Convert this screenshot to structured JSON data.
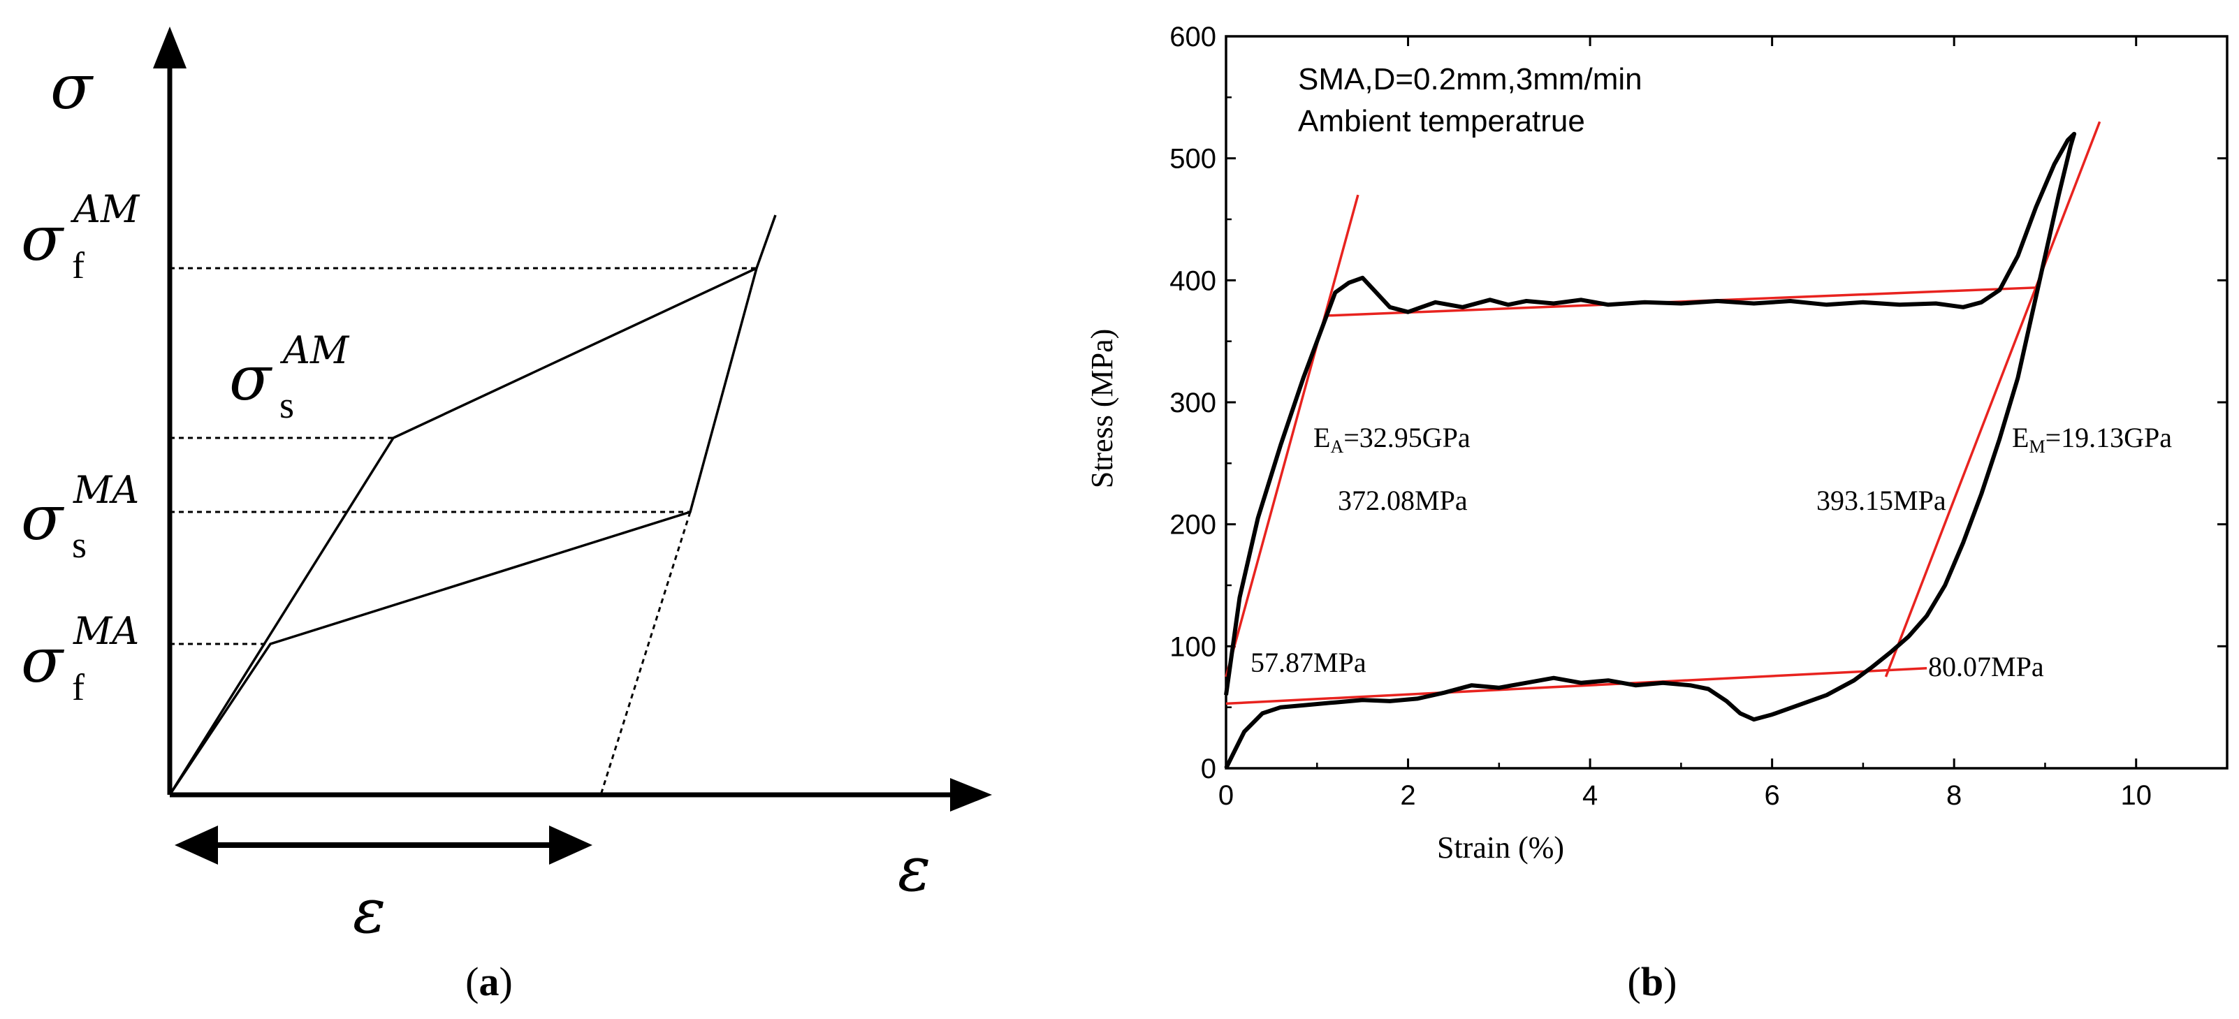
{
  "panel_a": {
    "caption_open": "(",
    "caption_letter": "a",
    "caption_close": ")",
    "y_axis_symbol": "σ",
    "x_axis_symbol": "ε",
    "strain_arrow_symbol": "ε",
    "levels": {
      "sigma_f_AM": {
        "symbol": "σ",
        "sub": "f",
        "sup": "AM"
      },
      "sigma_s_AM": {
        "symbol": "σ",
        "sub": "s",
        "sup": "AM"
      },
      "sigma_s_MA": {
        "symbol": "σ",
        "sub": "s",
        "sup": "MA"
      },
      "sigma_f_MA": {
        "symbol": "σ",
        "sub": "f",
        "sup": "MA"
      }
    }
  },
  "panel_b": {
    "caption_open": "(",
    "caption_letter": "b",
    "caption_close": ")"
  },
  "chart_data": [
    {
      "type": "line",
      "panel": "a",
      "schematic": true,
      "xlabel": "ε",
      "ylabel": "σ",
      "series": [
        {
          "style": "solid",
          "x": [
            0,
            0.14,
            0.5,
            0.46,
            0.07,
            0
          ],
          "y": [
            0,
            0.58,
            0.82,
            0.47,
            0.25,
            0
          ]
        },
        {
          "style": "dashed",
          "x": [
            0.46,
            0.38
          ],
          "y": [
            0.47,
            0
          ]
        }
      ],
      "marked_levels": [
        0.82,
        0.58,
        0.47,
        0.25
      ],
      "strain_arrow_x": [
        0,
        0.38
      ]
    },
    {
      "type": "line",
      "panel": "b",
      "annotations_top": [
        "SMA,D=0.2mm,3mm/min",
        "Ambient temperatrue"
      ],
      "xlabel": "Strain (%)",
      "ylabel": "Stress (MPa)",
      "xlim": [
        0,
        11
      ],
      "ylim": [
        0,
        600
      ],
      "xticks": [
        0,
        2,
        4,
        6,
        8,
        10
      ],
      "yticks": [
        0,
        100,
        200,
        300,
        400,
        500,
        600
      ],
      "x_tick_labels": [
        "0",
        "2",
        "4",
        "6",
        "8",
        "10"
      ],
      "y_tick_labels": [
        "0",
        "100",
        "200",
        "300",
        "400",
        "500",
        "600"
      ],
      "series": [
        {
          "color": "#000000",
          "x": [
            0,
            0.15,
            0.35,
            0.6,
            0.85,
            1.05,
            1.2,
            1.35,
            1.5,
            1.65,
            1.8,
            2.0,
            2.3,
            2.6,
            2.9,
            3.1,
            3.3,
            3.6,
            3.9,
            4.2,
            4.6,
            5.0,
            5.4,
            5.8,
            6.2,
            6.6,
            7.0,
            7.4,
            7.8,
            8.1,
            8.3,
            8.5,
            8.7,
            8.9,
            9.1,
            9.25,
            9.32,
            9.28,
            9.15,
            9.0,
            8.85,
            8.7,
            8.5,
            8.3,
            8.1,
            7.9,
            7.7,
            7.5,
            7.3,
            7.1,
            6.9,
            6.6,
            6.3,
            6.0,
            5.8,
            5.65,
            5.5,
            5.3,
            5.1,
            4.8,
            4.5,
            4.2,
            3.9,
            3.6,
            3.3,
            3.0,
            2.7,
            2.4,
            2.1,
            1.8,
            1.5,
            1.2,
            0.9,
            0.6,
            0.4,
            0.2,
            0.08,
            0
          ],
          "y": [
            60,
            140,
            205,
            265,
            320,
            360,
            390,
            398,
            402,
            390,
            378,
            374,
            382,
            378,
            384,
            380,
            383,
            381,
            384,
            380,
            382,
            381,
            383,
            381,
            383,
            380,
            382,
            380,
            381,
            378,
            382,
            392,
            420,
            460,
            495,
            515,
            520,
            510,
            470,
            420,
            370,
            320,
            270,
            225,
            185,
            150,
            125,
            108,
            95,
            83,
            72,
            60,
            52,
            44,
            40,
            45,
            55,
            65,
            68,
            70,
            68,
            72,
            70,
            74,
            70,
            66,
            68,
            62,
            57,
            55,
            56,
            54,
            52,
            50,
            45,
            30,
            12,
            0
          ]
        }
      ],
      "fit_lines": [
        {
          "color": "#e8231f",
          "x": [
            0,
            1.45
          ],
          "y": [
            75,
            470
          ],
          "label": "E",
          "label_sub": "A",
          "label_rest": "=32.95GPa"
        },
        {
          "color": "#e8231f",
          "x": [
            7.25,
            9.6
          ],
          "y": [
            75,
            530
          ],
          "label": "E",
          "label_sub": "M",
          "label_rest": "=19.13GPa"
        },
        {
          "color": "#e8231f",
          "x": [
            1.1,
            8.9
          ],
          "y": [
            371,
            394
          ]
        },
        {
          "color": "#e8231f",
          "x": [
            0,
            7.7
          ],
          "y": [
            53,
            82
          ]
        }
      ],
      "value_labels": [
        "372.08MPa",
        "393.15MPa",
        "57.87MPa",
        "80.07MPa"
      ]
    }
  ]
}
